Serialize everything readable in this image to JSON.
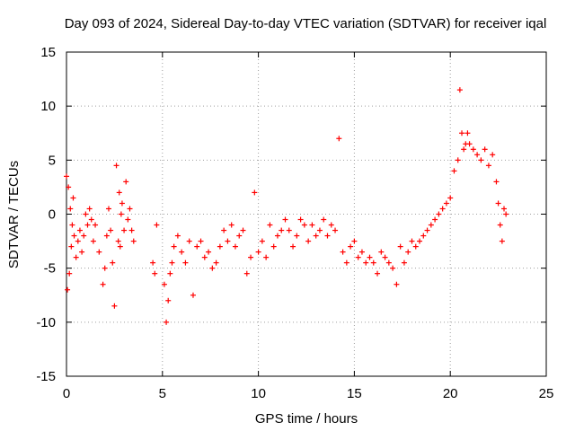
{
  "chart_data": {
    "type": "scatter",
    "title": "Day 093 of 2024, Sidereal Day-to-day VTEC variation (SDTVAR) for receiver iqal",
    "xlabel": "GPS time / hours",
    "ylabel": "SDTVAR / TECUs",
    "xlim": [
      0,
      25
    ],
    "ylim": [
      -15,
      15
    ],
    "xticks": [
      0,
      5,
      10,
      15,
      20,
      25
    ],
    "yticks": [
      -15,
      -10,
      -5,
      0,
      5,
      10,
      15
    ],
    "grid": true,
    "marker": "+",
    "color": "#ff0000",
    "series": [
      {
        "name": "SDTVAR",
        "x": [
          0.0,
          0.05,
          0.1,
          0.15,
          0.2,
          0.25,
          0.3,
          0.35,
          0.4,
          0.5,
          0.6,
          0.7,
          0.8,
          0.9,
          1.0,
          1.1,
          1.2,
          1.3,
          1.4,
          1.5,
          1.7,
          1.9,
          2.0,
          2.1,
          2.2,
          2.3,
          2.4,
          2.5,
          2.6,
          2.7,
          2.75,
          2.8,
          2.85,
          2.9,
          3.0,
          3.1,
          3.2,
          3.3,
          3.4,
          3.5,
          4.5,
          4.6,
          4.7,
          5.1,
          5.2,
          5.3,
          5.4,
          5.5,
          5.6,
          5.8,
          6.0,
          6.2,
          6.4,
          6.6,
          6.8,
          7.0,
          7.2,
          7.4,
          7.6,
          7.8,
          8.0,
          8.2,
          8.4,
          8.6,
          8.8,
          9.0,
          9.2,
          9.4,
          9.6,
          9.8,
          10.0,
          10.2,
          10.4,
          10.6,
          10.8,
          11.0,
          11.2,
          11.4,
          11.6,
          11.8,
          12.0,
          12.2,
          12.4,
          12.6,
          12.8,
          13.0,
          13.2,
          13.4,
          13.6,
          13.8,
          14.0,
          14.2,
          14.4,
          14.6,
          14.8,
          15.0,
          15.2,
          15.4,
          15.6,
          15.8,
          16.0,
          16.2,
          16.4,
          16.6,
          16.8,
          17.0,
          17.2,
          17.4,
          17.6,
          17.8,
          18.0,
          18.2,
          18.4,
          18.6,
          18.8,
          19.0,
          19.2,
          19.4,
          19.6,
          19.8,
          20.0,
          20.2,
          20.4,
          20.5,
          20.6,
          20.7,
          20.8,
          20.9,
          21.0,
          21.2,
          21.4,
          21.6,
          21.8,
          22.0,
          22.2,
          22.4,
          22.5,
          22.6,
          22.7,
          22.8,
          22.9
        ],
        "y": [
          3.5,
          -7.0,
          2.5,
          -5.5,
          0.5,
          -3.0,
          -1.0,
          1.5,
          -2.0,
          -4.0,
          -2.5,
          -1.5,
          -3.5,
          -2.0,
          0.0,
          -1.0,
          0.5,
          -0.5,
          -2.5,
          -1.0,
          -3.5,
          -6.5,
          -5.0,
          -2.0,
          0.5,
          -1.5,
          -4.5,
          -8.5,
          4.5,
          -2.5,
          2.0,
          -3.0,
          0.0,
          1.0,
          -1.5,
          3.0,
          -0.5,
          0.5,
          -1.5,
          -2.5,
          -4.5,
          -5.5,
          -1.0,
          -6.5,
          -10.0,
          -8.0,
          -5.5,
          -4.5,
          -3.0,
          -2.0,
          -3.5,
          -4.5,
          -2.5,
          -7.5,
          -3.0,
          -2.5,
          -4.0,
          -3.5,
          -5.0,
          -4.5,
          -3.0,
          -1.5,
          -2.5,
          -1.0,
          -3.0,
          -2.0,
          -1.5,
          -5.5,
          -4.0,
          2.0,
          -3.5,
          -2.5,
          -4.0,
          -1.0,
          -3.0,
          -2.0,
          -1.5,
          -0.5,
          -1.5,
          -3.0,
          -2.0,
          -0.5,
          -1.0,
          -2.5,
          -1.0,
          -2.0,
          -1.5,
          -0.5,
          -2.0,
          -1.0,
          -1.5,
          7.0,
          -3.5,
          -4.5,
          -3.0,
          -2.5,
          -4.0,
          -3.5,
          -4.5,
          -4.0,
          -4.5,
          -5.5,
          -3.5,
          -4.0,
          -4.5,
          -5.0,
          -6.5,
          -3.0,
          -4.5,
          -3.5,
          -2.5,
          -3.0,
          -2.5,
          -2.0,
          -1.5,
          -1.0,
          -0.5,
          0.0,
          0.5,
          1.0,
          1.5,
          4.0,
          5.0,
          11.5,
          7.5,
          6.0,
          6.5,
          7.5,
          6.5,
          6.0,
          5.5,
          5.0,
          6.0,
          4.5,
          5.5,
          3.0,
          1.0,
          -1.0,
          -2.5,
          0.5,
          0.0
        ]
      }
    ]
  }
}
